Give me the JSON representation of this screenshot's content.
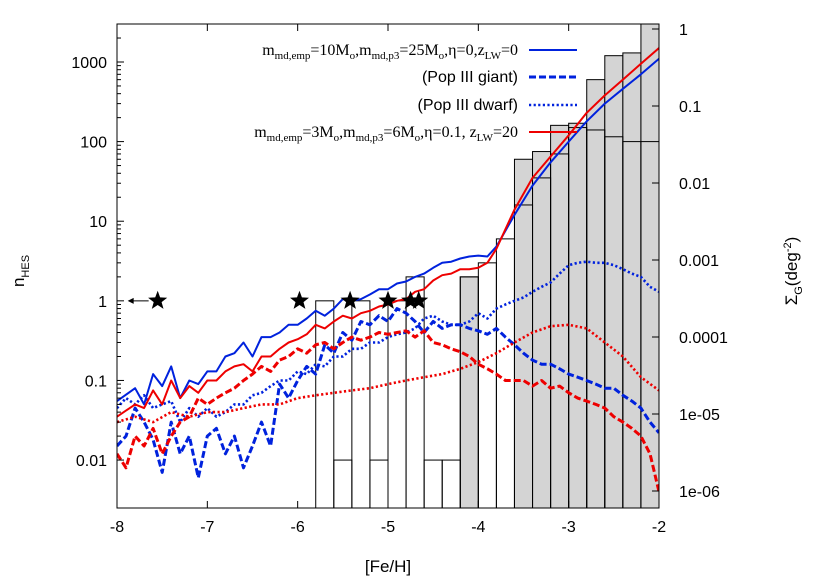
{
  "chart_data": {
    "type": "line",
    "xlabel": "[Fe/H]",
    "ylabel": "n",
    "ylabel_sub": "HES",
    "y2label": "Σ",
    "y2label_sub": "G",
    "y2label_tail": "(deg",
    "y2label_sup": "-2",
    "y2label_close": ")",
    "xlim": [
      -8,
      -2
    ],
    "ylim": [
      0.0025,
      3000
    ],
    "yscale": "log",
    "xticks": [
      "-8",
      "-7",
      "-6",
      "-5",
      "-4",
      "-3",
      "-2"
    ],
    "yticks": [
      "0.01",
      "0.1",
      "1",
      "10",
      "100",
      "1000"
    ],
    "y2ticks": [
      "1e-06",
      "1e-05",
      "0.0001",
      "0.001",
      "0.01",
      "0.1",
      "1"
    ],
    "legend": {
      "position": "top-right",
      "entries": [
        {
          "parts": [
            "m",
            "md,emp",
            "=10M",
            "o",
            ",m",
            "md,p3",
            "=25M",
            "o",
            ",η=0,z",
            "LW",
            "=0"
          ],
          "style": "solid",
          "color": "#0022dd"
        },
        {
          "label": "(Pop III giant)",
          "style": "dashed",
          "color": "#0022dd"
        },
        {
          "label": "(Pop III dwarf)",
          "style": "dotted",
          "color": "#0022dd"
        },
        {
          "parts": [
            "m",
            "md,emp",
            "=3M",
            "o",
            ",m",
            "md,p3",
            "=6M",
            "o",
            ",η=0.1, z",
            "LW",
            "=20"
          ],
          "style": "solid",
          "color": "#ee0000"
        }
      ]
    },
    "hist_gray": [
      {
        "x0": -4.2,
        "x1": -4.0,
        "y": 2
      },
      {
        "x0": -3.6,
        "x1": -3.4,
        "y": 60
      },
      {
        "x0": -3.4,
        "x1": -3.2,
        "y": 75
      },
      {
        "x0": -3.2,
        "x1": -3.0,
        "y": 160
      },
      {
        "x0": -3.0,
        "x1": -2.8,
        "y": 170
      },
      {
        "x0": -2.8,
        "x1": -2.6,
        "y": 600
      },
      {
        "x0": -2.6,
        "x1": -2.4,
        "y": 1200
      },
      {
        "x0": -2.4,
        "x1": -2.2,
        "y": 1300
      },
      {
        "x0": -2.2,
        "x1": -2.0,
        "y": 3000
      }
    ],
    "hist_outline": [
      {
        "x0": -5.8,
        "x1": -5.6,
        "y": 1
      },
      {
        "x0": -5.6,
        "x1": -5.4,
        "y": 0.01
      },
      {
        "x0": -5.4,
        "x1": -5.2,
        "y": 1
      },
      {
        "x0": -5.2,
        "x1": -5.0,
        "y": 0.01
      },
      {
        "x0": -5.0,
        "x1": -4.8,
        "y": 1
      },
      {
        "x0": -4.8,
        "x1": -4.6,
        "y": 2
      },
      {
        "x0": -4.6,
        "x1": -4.4,
        "y": 0.01
      },
      {
        "x0": -4.4,
        "x1": -4.2,
        "y": 0.01
      },
      {
        "x0": -4.2,
        "x1": -4.0,
        "y": 2
      },
      {
        "x0": -4.0,
        "x1": -3.8,
        "y": 3
      },
      {
        "x0": -3.8,
        "x1": -3.6,
        "y": 6
      },
      {
        "x0": -3.6,
        "x1": -3.4,
        "y": 16
      },
      {
        "x0": -3.4,
        "x1": -3.2,
        "y": 35
      },
      {
        "x0": -3.2,
        "x1": -3.0,
        "y": 70
      },
      {
        "x0": -3.0,
        "x1": -2.8,
        "y": 150
      },
      {
        "x0": -2.8,
        "x1": -2.6,
        "y": 140
      },
      {
        "x0": -2.6,
        "x1": -2.4,
        "y": 115
      },
      {
        "x0": -2.4,
        "x1": -2.2,
        "y": 100
      },
      {
        "x0": -2.2,
        "x1": -2.0,
        "y": 100
      }
    ],
    "stars": [
      {
        "x": -7.55,
        "y": 1,
        "upper_limit": true
      },
      {
        "x": -5.98,
        "y": 1
      },
      {
        "x": -5.42,
        "y": 1
      },
      {
        "x": -5.0,
        "y": 1
      },
      {
        "x": -4.75,
        "y": 1
      },
      {
        "x": -4.66,
        "y": 1
      }
    ],
    "series": [
      {
        "style": "solid",
        "color": "#0022dd",
        "x": [
          -8.0,
          -7.8,
          -7.7,
          -7.6,
          -7.5,
          -7.4,
          -7.3,
          -7.2,
          -7.1,
          -7.0,
          -6.9,
          -6.8,
          -6.7,
          -6.6,
          -6.5,
          -6.4,
          -6.3,
          -6.2,
          -6.1,
          -6.0,
          -5.9,
          -5.8,
          -5.7,
          -5.6,
          -5.5,
          -5.4,
          -5.3,
          -5.2,
          -5.1,
          -5.0,
          -4.9,
          -4.8,
          -4.7,
          -4.6,
          -4.5,
          -4.4,
          -4.3,
          -4.2,
          -4.1,
          -4.0,
          -3.9,
          -3.8,
          -3.6,
          -3.4,
          -3.2,
          -3.0,
          -2.8,
          -2.6,
          -2.4,
          -2.2,
          -2.0
        ],
        "y": [
          0.055,
          0.08,
          0.05,
          0.12,
          0.085,
          0.15,
          0.06,
          0.1,
          0.09,
          0.13,
          0.13,
          0.2,
          0.22,
          0.3,
          0.2,
          0.35,
          0.35,
          0.4,
          0.5,
          0.5,
          0.6,
          0.75,
          0.65,
          0.8,
          1.05,
          1.0,
          1.05,
          1.2,
          1.4,
          1.4,
          1.65,
          1.75,
          2.0,
          2.2,
          2.6,
          3.0,
          3.1,
          3.4,
          3.6,
          3.7,
          3.6,
          4.8,
          12,
          28,
          55,
          100,
          180,
          300,
          460,
          700,
          1100
        ]
      },
      {
        "style": "dashed",
        "color": "#0022dd",
        "x": [
          -8.0,
          -7.9,
          -7.8,
          -7.7,
          -7.6,
          -7.5,
          -7.4,
          -7.3,
          -7.2,
          -7.1,
          -7.0,
          -6.9,
          -6.8,
          -6.7,
          -6.6,
          -6.5,
          -6.4,
          -6.3,
          -6.2,
          -6.1,
          -6.0,
          -5.9,
          -5.8,
          -5.7,
          -5.6,
          -5.5,
          -5.4,
          -5.3,
          -5.2,
          -5.1,
          -5.0,
          -4.9,
          -4.8,
          -4.7,
          -4.6,
          -4.5,
          -4.4,
          -4.3,
          -4.2,
          -4.1,
          -4.0,
          -3.9,
          -3.8,
          -3.7,
          -3.6,
          -3.5,
          -3.4,
          -3.3,
          -3.2,
          -3.1,
          -3.0,
          -2.9,
          -2.8,
          -2.7,
          -2.6,
          -2.5,
          -2.4,
          -2.3,
          -2.2,
          -2.1,
          -2.0
        ],
        "y": [
          0.015,
          0.02,
          0.045,
          0.03,
          0.018,
          0.007,
          0.03,
          0.012,
          0.02,
          0.006,
          0.02,
          0.025,
          0.012,
          0.02,
          0.008,
          0.015,
          0.03,
          0.015,
          0.09,
          0.06,
          0.1,
          0.15,
          0.12,
          0.28,
          0.22,
          0.4,
          0.32,
          0.55,
          0.5,
          0.65,
          0.55,
          0.8,
          0.7,
          0.55,
          0.4,
          0.55,
          0.45,
          0.5,
          0.5,
          0.45,
          0.42,
          0.38,
          0.45,
          0.35,
          0.28,
          0.22,
          0.18,
          0.16,
          0.16,
          0.14,
          0.12,
          0.11,
          0.1,
          0.09,
          0.08,
          0.08,
          0.065,
          0.055,
          0.045,
          0.03,
          0.022
        ]
      },
      {
        "style": "dotted",
        "color": "#0022dd",
        "x": [
          -8.0,
          -7.9,
          -7.8,
          -7.7,
          -7.6,
          -7.5,
          -7.4,
          -7.3,
          -7.2,
          -7.1,
          -7.0,
          -6.9,
          -6.8,
          -6.7,
          -6.6,
          -6.5,
          -6.4,
          -6.3,
          -6.2,
          -6.1,
          -6.0,
          -5.9,
          -5.8,
          -5.7,
          -5.6,
          -5.5,
          -5.4,
          -5.3,
          -5.2,
          -5.1,
          -5.0,
          -4.9,
          -4.8,
          -4.7,
          -4.6,
          -4.5,
          -4.4,
          -4.3,
          -4.2,
          -4.1,
          -4.0,
          -3.9,
          -3.8,
          -3.7,
          -3.6,
          -3.5,
          -3.4,
          -3.3,
          -3.2,
          -3.1,
          -3.0,
          -2.9,
          -2.8,
          -2.7,
          -2.6,
          -2.5,
          -2.4,
          -2.3,
          -2.2,
          -2.1,
          -2.0
        ],
        "y": [
          0.045,
          0.06,
          0.05,
          0.065,
          0.045,
          0.05,
          0.055,
          0.03,
          0.045,
          0.035,
          0.045,
          0.035,
          0.04,
          0.05,
          0.05,
          0.065,
          0.07,
          0.085,
          0.1,
          0.1,
          0.13,
          0.12,
          0.16,
          0.15,
          0.2,
          0.2,
          0.25,
          0.25,
          0.3,
          0.3,
          0.35,
          0.38,
          0.4,
          0.45,
          0.6,
          0.65,
          0.55,
          0.5,
          0.5,
          0.55,
          0.7,
          0.6,
          0.8,
          0.9,
          1.0,
          1.1,
          1.3,
          1.5,
          1.7,
          2.2,
          2.8,
          3.0,
          3.1,
          3.0,
          3.0,
          2.8,
          2.5,
          2.2,
          2.0,
          1.5,
          1.3
        ]
      },
      {
        "style": "solid",
        "color": "#ee0000",
        "x": [
          -8.0,
          -7.8,
          -7.7,
          -7.6,
          -7.5,
          -7.4,
          -7.3,
          -7.2,
          -7.1,
          -7.0,
          -6.9,
          -6.8,
          -6.7,
          -6.6,
          -6.5,
          -6.4,
          -6.3,
          -6.2,
          -6.1,
          -6.0,
          -5.9,
          -5.8,
          -5.7,
          -5.6,
          -5.5,
          -5.4,
          -5.3,
          -5.2,
          -5.1,
          -5.0,
          -4.9,
          -4.8,
          -4.7,
          -4.6,
          -4.5,
          -4.4,
          -4.3,
          -4.2,
          -4.1,
          -4.0,
          -3.9,
          -3.8,
          -3.6,
          -3.4,
          -3.2,
          -3.0,
          -2.8,
          -2.6,
          -2.4,
          -2.2,
          -2.0
        ],
        "y": [
          0.035,
          0.05,
          0.045,
          0.075,
          0.05,
          0.1,
          0.06,
          0.085,
          0.07,
          0.1,
          0.1,
          0.13,
          0.15,
          0.16,
          0.13,
          0.2,
          0.2,
          0.25,
          0.3,
          0.33,
          0.38,
          0.5,
          0.45,
          0.55,
          0.65,
          0.6,
          0.7,
          0.75,
          0.85,
          0.9,
          1.0,
          1.05,
          1.3,
          1.4,
          1.8,
          2.1,
          2.2,
          2.5,
          2.5,
          2.6,
          3.0,
          4.5,
          14,
          35,
          65,
          120,
          230,
          380,
          600,
          950,
          1500
        ]
      },
      {
        "style": "dashed",
        "color": "#ee0000",
        "x": [
          -8.0,
          -7.9,
          -7.8,
          -7.7,
          -7.6,
          -7.5,
          -7.4,
          -7.3,
          -7.2,
          -7.1,
          -7.0,
          -6.9,
          -6.8,
          -6.7,
          -6.6,
          -6.5,
          -6.4,
          -6.3,
          -6.2,
          -6.1,
          -6.0,
          -5.9,
          -5.8,
          -5.7,
          -5.6,
          -5.5,
          -5.4,
          -5.3,
          -5.2,
          -5.1,
          -5.0,
          -4.9,
          -4.8,
          -4.7,
          -4.6,
          -4.5,
          -4.4,
          -4.3,
          -4.2,
          -4.1,
          -4.0,
          -3.9,
          -3.8,
          -3.7,
          -3.6,
          -3.5,
          -3.4,
          -3.3,
          -3.2,
          -3.1,
          -3.0,
          -2.9,
          -2.8,
          -2.7,
          -2.6,
          -2.5,
          -2.4,
          -2.3,
          -2.2,
          -2.1,
          -2.0
        ],
        "y": [
          0.012,
          0.008,
          0.02,
          0.015,
          0.025,
          0.012,
          0.02,
          0.03,
          0.035,
          0.06,
          0.05,
          0.06,
          0.07,
          0.08,
          0.1,
          0.12,
          0.15,
          0.13,
          0.18,
          0.2,
          0.25,
          0.22,
          0.28,
          0.3,
          0.25,
          0.3,
          0.35,
          0.32,
          0.35,
          0.4,
          0.38,
          0.4,
          0.42,
          0.35,
          0.42,
          0.3,
          0.28,
          0.25,
          0.23,
          0.2,
          0.16,
          0.14,
          0.12,
          0.1,
          0.1,
          0.1,
          0.085,
          0.1,
          0.08,
          0.085,
          0.07,
          0.06,
          0.055,
          0.05,
          0.045,
          0.035,
          0.03,
          0.025,
          0.02,
          0.012,
          0.004
        ]
      },
      {
        "style": "dotted",
        "color": "#ee0000",
        "x": [
          -8.0,
          -7.8,
          -7.6,
          -7.4,
          -7.2,
          -7.0,
          -6.8,
          -6.6,
          -6.4,
          -6.2,
          -6.0,
          -5.8,
          -5.6,
          -5.4,
          -5.2,
          -5.0,
          -4.8,
          -4.6,
          -4.4,
          -4.2,
          -4.0,
          -3.8,
          -3.6,
          -3.4,
          -3.2,
          -3.0,
          -2.8,
          -2.6,
          -2.4,
          -2.2,
          -2.0
        ],
        "y": [
          0.03,
          0.035,
          0.03,
          0.04,
          0.035,
          0.04,
          0.04,
          0.045,
          0.05,
          0.05,
          0.06,
          0.065,
          0.07,
          0.075,
          0.08,
          0.09,
          0.1,
          0.11,
          0.12,
          0.14,
          0.17,
          0.22,
          0.3,
          0.4,
          0.48,
          0.5,
          0.45,
          0.3,
          0.2,
          0.11,
          0.075
        ]
      }
    ]
  }
}
